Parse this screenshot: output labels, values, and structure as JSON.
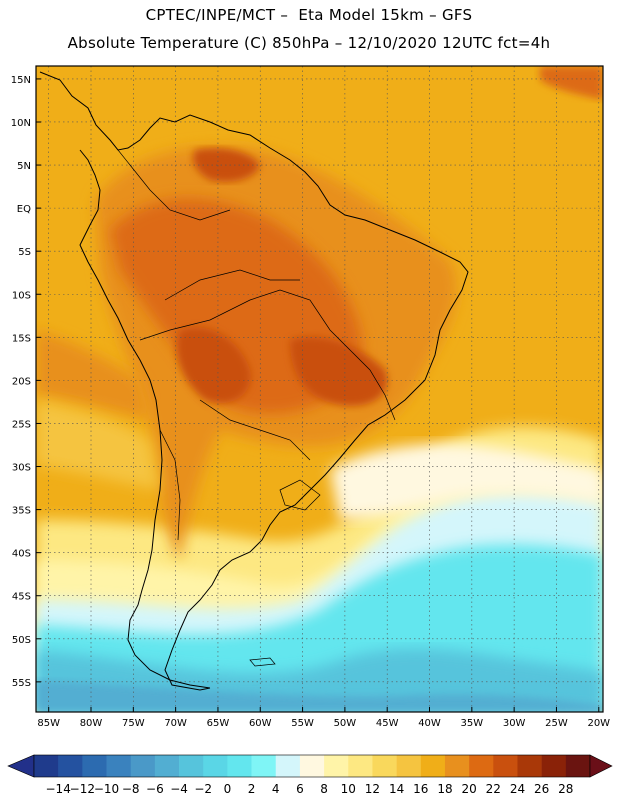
{
  "header": {
    "line1": "CPTEC/INPE/MCT –  Eta Model 15km – GFS",
    "line2": "Absolute Temperature (C) 850hPa – 12/10/2020 12UTC fct=4h"
  },
  "map": {
    "lat_labels": [
      "15N",
      "10N",
      "5N",
      "EQ",
      "5S",
      "10S",
      "15S",
      "20S",
      "25S",
      "30S",
      "35S",
      "40S",
      "45S",
      "50S",
      "55S"
    ],
    "lon_labels": [
      "85W",
      "80W",
      "75W",
      "70W",
      "65W",
      "60W",
      "55W",
      "50W",
      "45W",
      "40W",
      "35W",
      "30W",
      "25W",
      "20W"
    ]
  },
  "colorbar": {
    "labels": [
      "-14",
      "-12",
      "-10",
      "-8",
      "-6",
      "-4",
      "-2",
      "0",
      "2",
      "4",
      "6",
      "8",
      "10",
      "12",
      "14",
      "16",
      "18",
      "20",
      "22",
      "24",
      "26",
      "28"
    ],
    "colors": [
      "#1f3b8c",
      "#2452a0",
      "#2c6bb0",
      "#3a82be",
      "#4a99c8",
      "#52aed2",
      "#56c4dc",
      "#5ad6e6",
      "#63e6ee",
      "#7ff5f6",
      "#d4f6fb",
      "#fff8e0",
      "#fff4a8",
      "#fde882",
      "#f9d85c",
      "#f5c440",
      "#f0ae18",
      "#e8901e",
      "#dd6a12",
      "#c9500e",
      "#a93808",
      "#8a2208",
      "#6a1410"
    ],
    "underflow_color": "#22308a",
    "overflow_color": "#6a0f18"
  }
}
